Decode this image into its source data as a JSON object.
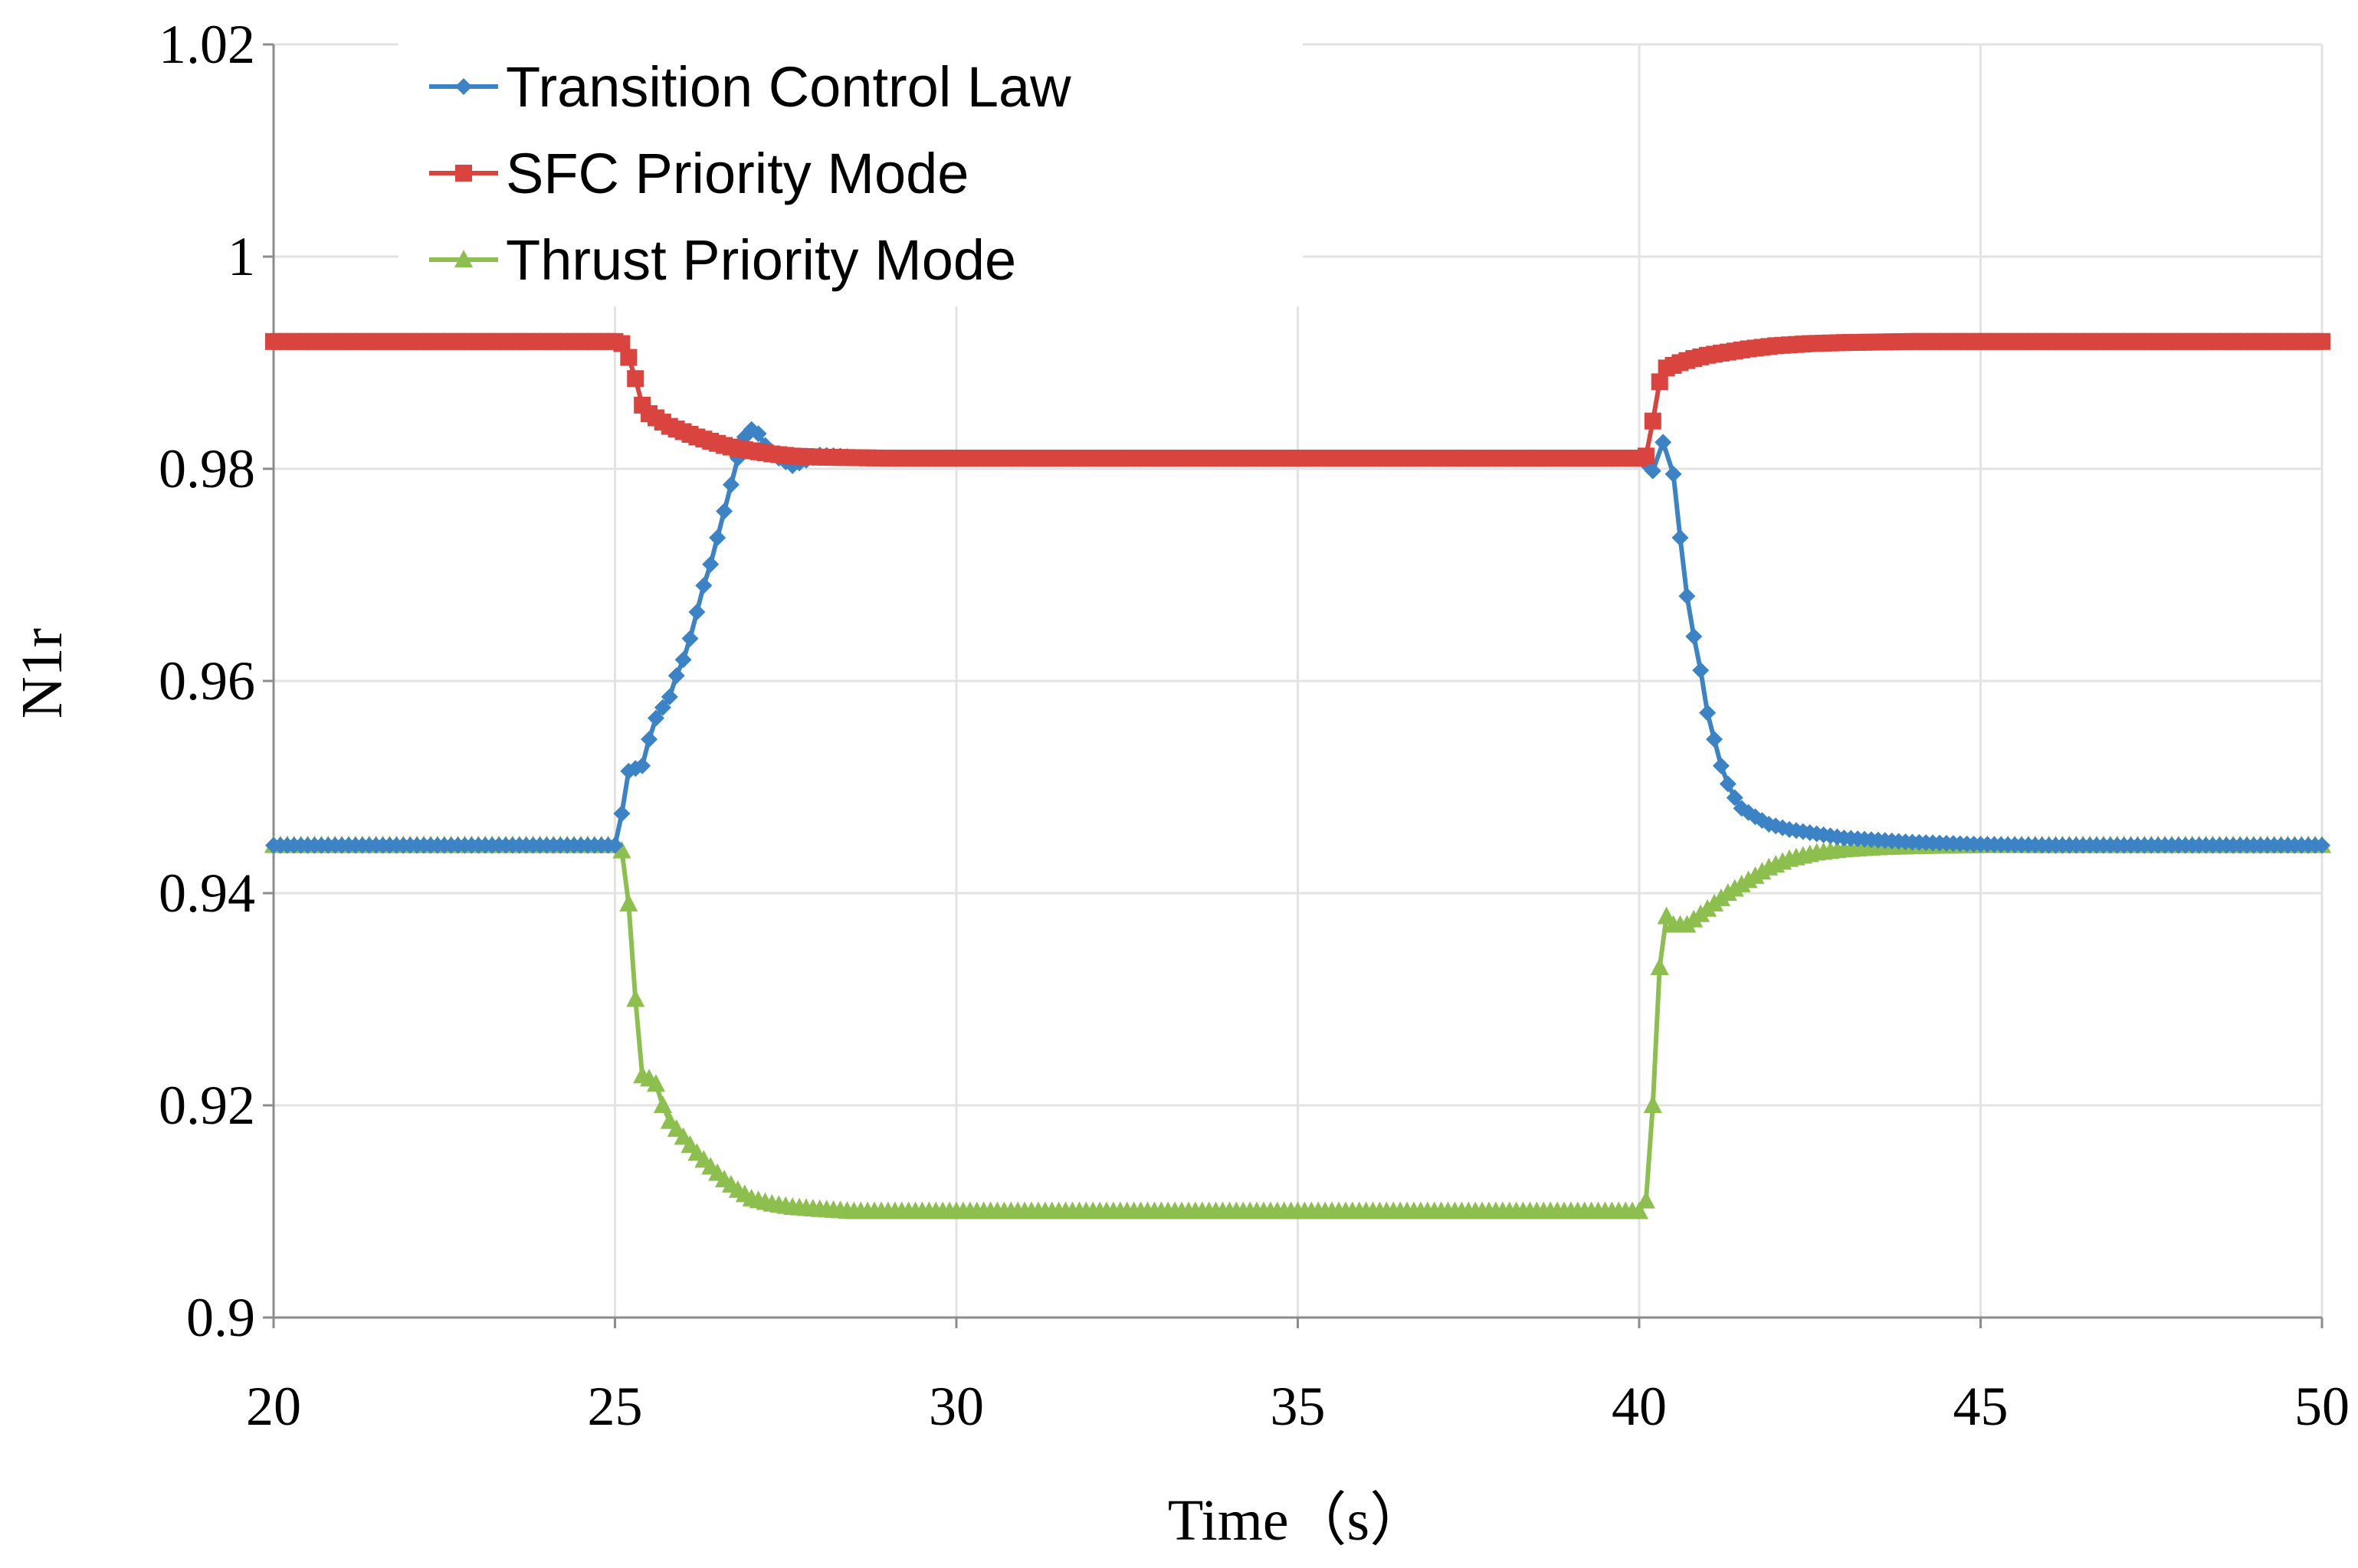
{
  "chart_data": {
    "type": "line",
    "title": "",
    "xlabel": "Time（s）",
    "ylabel": "N1r",
    "xlim": [
      20,
      50
    ],
    "ylim": [
      0.9,
      1.02
    ],
    "x_ticks": [
      20,
      25,
      30,
      35,
      40,
      45,
      50
    ],
    "y_ticks": [
      0.9,
      0.92,
      0.94,
      0.96,
      0.98,
      1,
      1.02
    ],
    "x_tick_labels": [
      "20",
      "25",
      "30",
      "35",
      "40",
      "45",
      "50"
    ],
    "y_tick_labels": [
      "0.9",
      "0.92",
      "0.94",
      "0.96",
      "0.98",
      "1",
      "1.02"
    ],
    "grid": true,
    "legend_position": "top-left",
    "series": [
      {
        "name": "Transition Control Law",
        "color": "#3b83c4",
        "marker": "diamond",
        "points": [
          [
            20,
            0.9445
          ],
          [
            21,
            0.9445
          ],
          [
            22,
            0.9445
          ],
          [
            23,
            0.9445
          ],
          [
            24,
            0.9445
          ],
          [
            25,
            0.9445
          ],
          [
            25.1,
            0.9475
          ],
          [
            25.2,
            0.9515
          ],
          [
            25.4,
            0.952
          ],
          [
            25.5,
            0.9545
          ],
          [
            25.6,
            0.9565
          ],
          [
            25.8,
            0.9585
          ],
          [
            25.9,
            0.9605
          ],
          [
            26.0,
            0.962
          ],
          [
            26.1,
            0.964
          ],
          [
            26.2,
            0.9665
          ],
          [
            26.3,
            0.969
          ],
          [
            26.4,
            0.971
          ],
          [
            26.5,
            0.9735
          ],
          [
            26.6,
            0.976
          ],
          [
            26.7,
            0.9785
          ],
          [
            26.8,
            0.981
          ],
          [
            26.9,
            0.983
          ],
          [
            27.0,
            0.9837
          ],
          [
            27.1,
            0.9833
          ],
          [
            27.2,
            0.9822
          ],
          [
            27.4,
            0.981
          ],
          [
            27.6,
            0.9803
          ],
          [
            27.8,
            0.9808
          ],
          [
            28.0,
            0.9813
          ],
          [
            28.3,
            0.9812
          ],
          [
            28.6,
            0.981
          ],
          [
            29,
            0.981
          ],
          [
            30,
            0.981
          ],
          [
            32,
            0.981
          ],
          [
            34,
            0.981
          ],
          [
            36,
            0.981
          ],
          [
            38,
            0.981
          ],
          [
            40,
            0.981
          ],
          [
            40.1,
            0.9805
          ],
          [
            40.2,
            0.9798
          ],
          [
            40.35,
            0.9825
          ],
          [
            40.5,
            0.9795
          ],
          [
            40.6,
            0.9735
          ],
          [
            40.7,
            0.968
          ],
          [
            40.8,
            0.9642
          ],
          [
            40.9,
            0.961
          ],
          [
            41.0,
            0.957
          ],
          [
            41.1,
            0.9545
          ],
          [
            41.2,
            0.952
          ],
          [
            41.3,
            0.9503
          ],
          [
            41.4,
            0.949
          ],
          [
            41.5,
            0.948
          ],
          [
            41.7,
            0.9472
          ],
          [
            41.9,
            0.9465
          ],
          [
            42.2,
            0.946
          ],
          [
            42.6,
            0.9456
          ],
          [
            43,
            0.9452
          ],
          [
            43.5,
            0.945
          ],
          [
            44,
            0.9448
          ],
          [
            45,
            0.9446
          ],
          [
            46,
            0.9445
          ],
          [
            48,
            0.9445
          ],
          [
            50,
            0.9445
          ]
        ]
      },
      {
        "name": "SFC Priority Mode",
        "color": "#d9443f",
        "marker": "square",
        "points": [
          [
            20,
            0.992
          ],
          [
            22,
            0.992
          ],
          [
            24,
            0.992
          ],
          [
            25,
            0.992
          ],
          [
            25.1,
            0.9918
          ],
          [
            25.2,
            0.9905
          ],
          [
            25.3,
            0.9885
          ],
          [
            25.4,
            0.986
          ],
          [
            25.5,
            0.9852
          ],
          [
            25.6,
            0.9848
          ],
          [
            25.8,
            0.984
          ],
          [
            26.0,
            0.9835
          ],
          [
            26.2,
            0.983
          ],
          [
            26.4,
            0.9826
          ],
          [
            26.6,
            0.9822
          ],
          [
            26.8,
            0.9819
          ],
          [
            27.0,
            0.9817
          ],
          [
            27.3,
            0.9814
          ],
          [
            27.6,
            0.9812
          ],
          [
            28,
            0.9811
          ],
          [
            29,
            0.981
          ],
          [
            30,
            0.981
          ],
          [
            32,
            0.981
          ],
          [
            34,
            0.981
          ],
          [
            36,
            0.981
          ],
          [
            38,
            0.981
          ],
          [
            40,
            0.981
          ],
          [
            40.1,
            0.9812
          ],
          [
            40.2,
            0.9845
          ],
          [
            40.3,
            0.9882
          ],
          [
            40.4,
            0.9895
          ],
          [
            40.6,
            0.99
          ],
          [
            40.8,
            0.9904
          ],
          [
            41.0,
            0.9907
          ],
          [
            41.3,
            0.991
          ],
          [
            41.6,
            0.9913
          ],
          [
            42,
            0.9916
          ],
          [
            42.5,
            0.9918
          ],
          [
            43,
            0.9919
          ],
          [
            44,
            0.992
          ],
          [
            45,
            0.992
          ],
          [
            47,
            0.992
          ],
          [
            50,
            0.992
          ]
        ]
      },
      {
        "name": "Thrust Priority Mode",
        "color": "#8cbf4e",
        "marker": "triangle",
        "points": [
          [
            20,
            0.9445
          ],
          [
            22,
            0.9445
          ],
          [
            24,
            0.9445
          ],
          [
            25,
            0.9445
          ],
          [
            25.1,
            0.944
          ],
          [
            25.2,
            0.939
          ],
          [
            25.3,
            0.93
          ],
          [
            25.4,
            0.9228
          ],
          [
            25.5,
            0.9225
          ],
          [
            25.6,
            0.922
          ],
          [
            25.7,
            0.92
          ],
          [
            25.8,
            0.9185
          ],
          [
            26.0,
            0.917
          ],
          [
            26.2,
            0.9155
          ],
          [
            26.4,
            0.9142
          ],
          [
            26.6,
            0.913
          ],
          [
            26.8,
            0.912
          ],
          [
            27.0,
            0.9112
          ],
          [
            27.3,
            0.9107
          ],
          [
            27.6,
            0.9104
          ],
          [
            28,
            0.9102
          ],
          [
            28.5,
            0.91
          ],
          [
            29,
            0.91
          ],
          [
            30,
            0.91
          ],
          [
            32,
            0.91
          ],
          [
            34,
            0.91
          ],
          [
            36,
            0.91
          ],
          [
            38,
            0.91
          ],
          [
            40,
            0.91
          ],
          [
            40.1,
            0.911
          ],
          [
            40.2,
            0.92
          ],
          [
            40.3,
            0.933
          ],
          [
            40.4,
            0.9378
          ],
          [
            40.5,
            0.937
          ],
          [
            40.7,
            0.937
          ],
          [
            40.9,
            0.938
          ],
          [
            41.1,
            0.939
          ],
          [
            41.3,
            0.94
          ],
          [
            41.6,
            0.9412
          ],
          [
            41.9,
            0.9424
          ],
          [
            42.2,
            0.9432
          ],
          [
            42.6,
            0.9438
          ],
          [
            43,
            0.9441
          ],
          [
            43.5,
            0.9443
          ],
          [
            44,
            0.9444
          ],
          [
            45,
            0.9445
          ],
          [
            47,
            0.9445
          ],
          [
            50,
            0.9445
          ]
        ]
      }
    ]
  }
}
